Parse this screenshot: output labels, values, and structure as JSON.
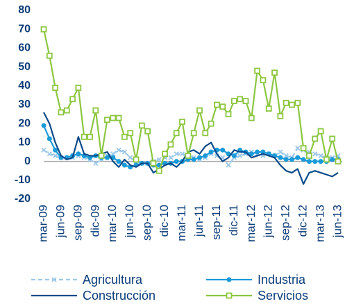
{
  "chart_data": {
    "type": "line",
    "categories": [
      "mar-09",
      null,
      null,
      "jun-09",
      null,
      null,
      "sep-09",
      null,
      null,
      "dic-09",
      null,
      null,
      "mar-10",
      null,
      null,
      "jun-10",
      null,
      null,
      "sep-10",
      null,
      null,
      "dic-10",
      null,
      null,
      "mar-11",
      null,
      null,
      "jun-11",
      null,
      null,
      "sep-11",
      null,
      null,
      "dic-11",
      null,
      null,
      "mar-12",
      null,
      null,
      "jun-12",
      null,
      null,
      "sep-12",
      null,
      null,
      "dic-12",
      null,
      null,
      "mar-13",
      null,
      null,
      "jun-13"
    ],
    "series": [
      {
        "name": "Agricultura",
        "color": "#9dc8ea",
        "dash": true,
        "marker": "x",
        "values": [
          6,
          4,
          3,
          2,
          2,
          2,
          3,
          2,
          1,
          -1,
          1,
          3,
          4,
          6,
          5,
          2,
          0,
          -1,
          -1,
          0,
          1,
          2,
          2,
          4,
          4,
          3,
          2,
          1,
          2,
          4,
          3,
          2,
          -2,
          2,
          3,
          4,
          5,
          4,
          3,
          4,
          3,
          5,
          3,
          2,
          7,
          6,
          5,
          4,
          3,
          2,
          2,
          3
        ]
      },
      {
        "name": "Industria",
        "color": "#1b9ad8",
        "marker": "circle",
        "values": [
          19,
          12,
          6,
          2,
          2,
          3,
          4,
          3,
          2,
          3,
          2,
          2,
          2,
          0,
          -2,
          -3,
          -2,
          -1,
          -1,
          -2,
          -2,
          -1,
          -1,
          0,
          0,
          1,
          1,
          2,
          3,
          5,
          6,
          6,
          4,
          3,
          6,
          5,
          4,
          5,
          5,
          4,
          3,
          2,
          1,
          1,
          2,
          1,
          0,
          0,
          0,
          0,
          1,
          1
        ]
      },
      {
        "name": "Construcción",
        "color": "#0b4a8a",
        "marker": "none",
        "values": [
          26,
          20,
          10,
          3,
          1,
          2,
          13,
          4,
          3,
          3,
          4,
          5,
          0,
          -3,
          1,
          -2,
          -3,
          -1,
          -1,
          -6,
          -4,
          -2,
          -1,
          -3,
          0,
          5,
          6,
          4,
          8,
          10,
          4,
          0,
          2,
          6,
          5,
          5,
          2,
          3,
          4,
          3,
          2,
          -2,
          -5,
          -6,
          -4,
          -12,
          -6,
          -5,
          -6,
          -7,
          -8,
          -6
        ]
      },
      {
        "name": "Servicios",
        "color": "#8cc63f",
        "marker": "square",
        "values": [
          70,
          56,
          39,
          26,
          27,
          33,
          39,
          13,
          13,
          27,
          3,
          22,
          23,
          23,
          13,
          15,
          1,
          19,
          16,
          -1,
          -5,
          4,
          9,
          15,
          21,
          3,
          15,
          27,
          15,
          20,
          30,
          29,
          25,
          32,
          33,
          32,
          23,
          48,
          43,
          28,
          47,
          24,
          31,
          30,
          31,
          7,
          3,
          12,
          16,
          1,
          12,
          0
        ]
      }
    ],
    "ylim": [
      -20,
      80
    ],
    "yticks": [
      -20,
      -10,
      0,
      10,
      20,
      30,
      40,
      50,
      60,
      70,
      80
    ],
    "zero_line": true,
    "grid": false
  }
}
